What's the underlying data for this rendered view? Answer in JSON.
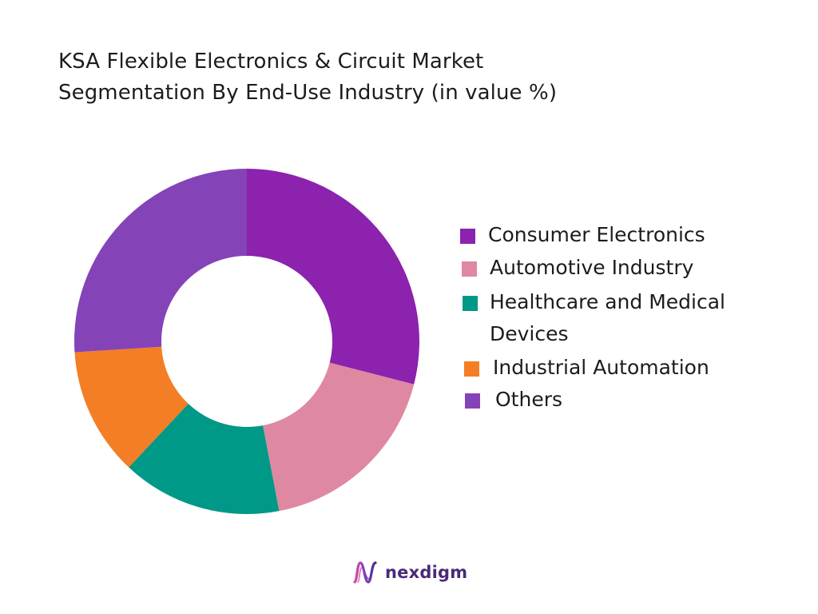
{
  "chart_data": {
    "type": "pie",
    "variant": "donut",
    "title_lines": [
      "KSA Flexible Electronics & Circuit Market",
      "Segmentation By End-Use Industry (in value %)"
    ],
    "unit": "%",
    "legend_position": "right",
    "slices": [
      {
        "label": "Consumer Electronics",
        "value": 29,
        "color": "#8c22ad"
      },
      {
        "label": "Automotive Industry",
        "value": 18,
        "color": "#df88a1"
      },
      {
        "label": "Healthcare and Medical Devices",
        "label_lines": [
          "Healthcare and Medical",
          "Devices"
        ],
        "value": 15,
        "color": "#009886"
      },
      {
        "label": "Industrial Automation",
        "value": 12,
        "color": "#f37e25"
      },
      {
        "label": "Others",
        "value": 26,
        "color": "#8543b8"
      }
    ]
  },
  "branding": {
    "logo_text": "nexdigm",
    "logo_icon": "nexdigm-wave-icon"
  }
}
